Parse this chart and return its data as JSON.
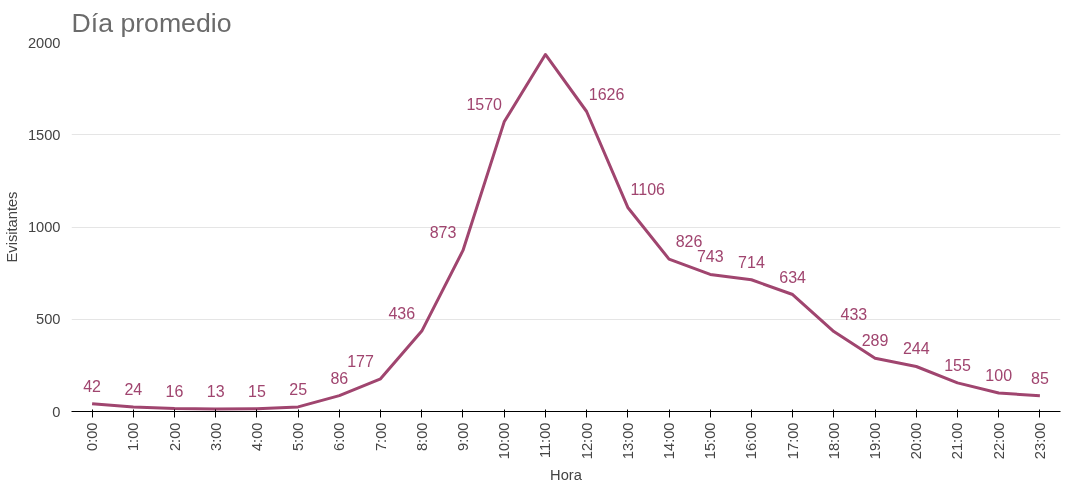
{
  "chart_data": {
    "type": "line",
    "title": "Día promedio",
    "xlabel": "Hora",
    "ylabel": "Evisitantes",
    "categories": [
      "0:00",
      "1:00",
      "2:00",
      "3:00",
      "4:00",
      "5:00",
      "6:00",
      "7:00",
      "8:00",
      "9:00",
      "10:00",
      "11:00",
      "12:00",
      "13:00",
      "14:00",
      "15:00",
      "16:00",
      "17:00",
      "18:00",
      "19:00",
      "20:00",
      "21:00",
      "22:00",
      "23:00"
    ],
    "series": [
      {
        "color": "#a0456f",
        "values": [
          42,
          24,
          16,
          13,
          15,
          25,
          86,
          177,
          436,
          873,
          1570,
          1935,
          1626,
          1106,
          826,
          743,
          714,
          634,
          433,
          289,
          244,
          155,
          100,
          85
        ],
        "value_labels": [
          "42",
          "24",
          "16",
          "13",
          "15",
          "25",
          "86",
          "177",
          "436",
          "873",
          "1570",
          null,
          "1626",
          "1106",
          "826",
          "743",
          "714",
          "634",
          "433",
          "289",
          "244",
          "155",
          "100",
          "85"
        ]
      }
    ],
    "ylim": [
      0,
      2000
    ],
    "yticks": [
      0,
      500,
      1000,
      1500,
      2000
    ],
    "grid": "y",
    "marker": "none",
    "line_style": "solid"
  }
}
